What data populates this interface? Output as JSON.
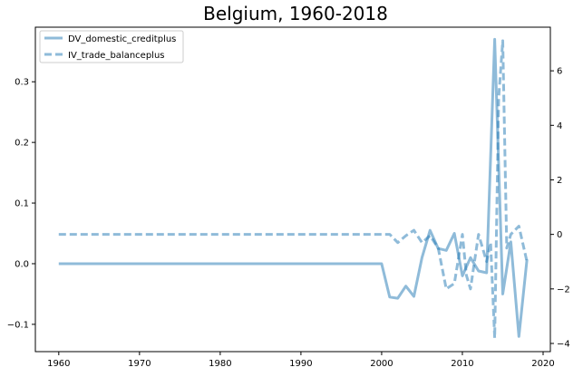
{
  "chart_data": {
    "type": "line",
    "title": "Belgium, 1960-2018",
    "xlabel": "",
    "ylabel_left": "",
    "ylabel_right": "",
    "xlim": [
      1957.1,
      2020.9
    ],
    "x_ticks": [
      1960,
      1970,
      1980,
      1990,
      2000,
      2010,
      2020
    ],
    "y_left_lim": [
      -0.145,
      0.39
    ],
    "y_left_ticks": [
      -0.1,
      0.0,
      0.1,
      0.2,
      0.3
    ],
    "y_left_tick_labels": [
      "−0.1",
      "0.0",
      "0.1",
      "0.2",
      "0.3"
    ],
    "y_right_lim": [
      -4.3,
      7.6
    ],
    "y_right_ticks": [
      -4,
      -2,
      0,
      2,
      4,
      6
    ],
    "y_right_tick_labels": [
      "−4",
      "−2",
      "0",
      "2",
      "4",
      "6"
    ],
    "legend_position": "top-left",
    "grid": false,
    "series": [
      {
        "name": "DV_domestic_creditplus",
        "axis": "left",
        "style": "solid",
        "color": "#1f77b4",
        "x": [
          1960,
          1961,
          1962,
          1963,
          1964,
          1965,
          1966,
          1967,
          1968,
          1969,
          1970,
          1971,
          1972,
          1973,
          1974,
          1975,
          1976,
          1977,
          1978,
          1979,
          1980,
          1981,
          1982,
          1983,
          1984,
          1985,
          1986,
          1987,
          1988,
          1989,
          1990,
          1991,
          1992,
          1993,
          1994,
          1995,
          1996,
          1997,
          1998,
          1999,
          2000,
          2001,
          2002,
          2003,
          2004,
          2005,
          2006,
          2007,
          2008,
          2009,
          2010,
          2011,
          2012,
          2013,
          2014,
          2015,
          2016,
          2017,
          2018
        ],
        "values": [
          0,
          0,
          0,
          0,
          0,
          0,
          0,
          0,
          0,
          0,
          0,
          0,
          0,
          0,
          0,
          0,
          0,
          0,
          0,
          0,
          0,
          0,
          0,
          0,
          0,
          0,
          0,
          0,
          0,
          0,
          0,
          0,
          0,
          0,
          0,
          0,
          0,
          0,
          0,
          0,
          0,
          -0.055,
          -0.057,
          -0.037,
          -0.054,
          0.01,
          0.055,
          0.025,
          0.022,
          0.05,
          -0.02,
          0.01,
          -0.012,
          -0.015,
          0.37,
          -0.05,
          0.036,
          -0.12,
          0.007
        ]
      },
      {
        "name": "IV_trade_balanceplus",
        "axis": "right",
        "style": "dashed",
        "color": "#1f77b4",
        "x": [
          1960,
          1961,
          1962,
          1963,
          1964,
          1965,
          1966,
          1967,
          1968,
          1969,
          1970,
          1971,
          1972,
          1973,
          1974,
          1975,
          1976,
          1977,
          1978,
          1979,
          1980,
          1981,
          1982,
          1983,
          1984,
          1985,
          1986,
          1987,
          1988,
          1989,
          1990,
          1991,
          1992,
          1993,
          1994,
          1995,
          1996,
          1997,
          1998,
          1999,
          2000,
          2001,
          2002,
          2003,
          2004,
          2005,
          2006,
          2007,
          2008,
          2009,
          2010,
          2010.5,
          2011,
          2011.5,
          2012,
          2013,
          2013.5,
          2014,
          2014.5,
          2015,
          2015.5,
          2016,
          2017,
          2018
        ],
        "values": [
          0,
          0,
          0,
          0,
          0,
          0,
          0,
          0,
          0,
          0,
          0,
          0,
          0,
          0,
          0,
          0,
          0,
          0,
          0,
          0,
          0,
          0,
          0,
          0,
          0,
          0,
          0,
          0,
          0,
          0,
          0,
          0,
          0,
          0,
          0,
          0,
          0,
          0,
          0,
          0,
          0,
          0,
          -0.3,
          -0.05,
          0.15,
          -0.3,
          -0.05,
          -0.5,
          -2.0,
          -1.8,
          0,
          -1.5,
          -2.0,
          -1.0,
          0,
          -1.0,
          -0.3,
          -3.8,
          5.0,
          7.1,
          -0.5,
          0,
          0.3,
          -1.0
        ]
      }
    ]
  }
}
